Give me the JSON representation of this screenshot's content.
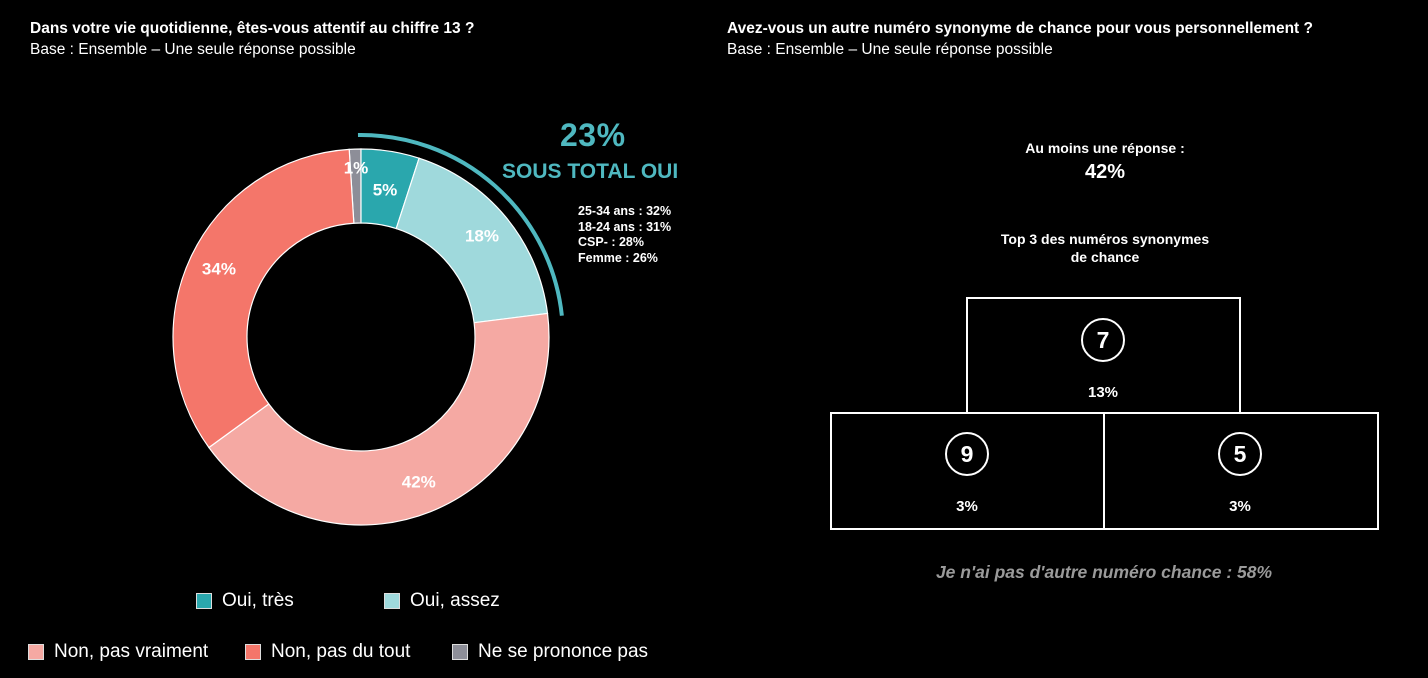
{
  "left": {
    "title": "Dans votre vie quotidienne, êtes-vous attentif au chiffre 13 ?",
    "base": "Base : Ensemble – Une seule réponse possible",
    "subtotal_value": "23%",
    "subtotal_label": "SOUS TOTAL OUI",
    "subtotal_details": [
      "25-34 ans : 32%",
      "18-24 ans : 31%",
      "CSP- : 28%",
      "Femme : 26%"
    ],
    "legend": [
      {
        "label": "Oui, très",
        "color": "#2aa7ad"
      },
      {
        "label": "Oui, assez",
        "color": "#9fd9dc"
      },
      {
        "label": "Non, pas vraiment",
        "color": "#f5a9a3"
      },
      {
        "label": "Non, pas du tout",
        "color": "#f4766a"
      },
      {
        "label": "Ne se prononce pas",
        "color": "#8d8e98"
      }
    ]
  },
  "right": {
    "title": "Avez-vous un autre numéro synonyme de chance pour vous personnellement ?",
    "base": "Base : Ensemble – Une seule réponse possible",
    "at_least_label": "Au moins une réponse :",
    "at_least_value": "42%",
    "top3_line1": "Top 3 des numéros synonymes",
    "top3_line2": "de chance",
    "podium": [
      {
        "number": "7",
        "pct": "13%"
      },
      {
        "number": "9",
        "pct": "3%"
      },
      {
        "number": "5",
        "pct": "3%"
      }
    ],
    "none_text": "Je n'ai pas d'autre numéro chance : 58%"
  },
  "chart_data": {
    "type": "pie",
    "categories": [
      "Oui, très",
      "Oui, assez",
      "Non, pas vraiment",
      "Non, pas du tout",
      "Ne se prononce pas"
    ],
    "values": [
      5,
      18,
      42,
      34,
      1
    ],
    "labels": [
      "5%",
      "18%",
      "42%",
      "34%",
      "1%"
    ],
    "colors": [
      "#2aa7ad",
      "#9fd9dc",
      "#f5a9a3",
      "#f4766a",
      "#8d8e98"
    ],
    "title": "Dans votre vie quotidienne, êtes-vous attentif au chiffre 13 ?",
    "donut": true
  }
}
